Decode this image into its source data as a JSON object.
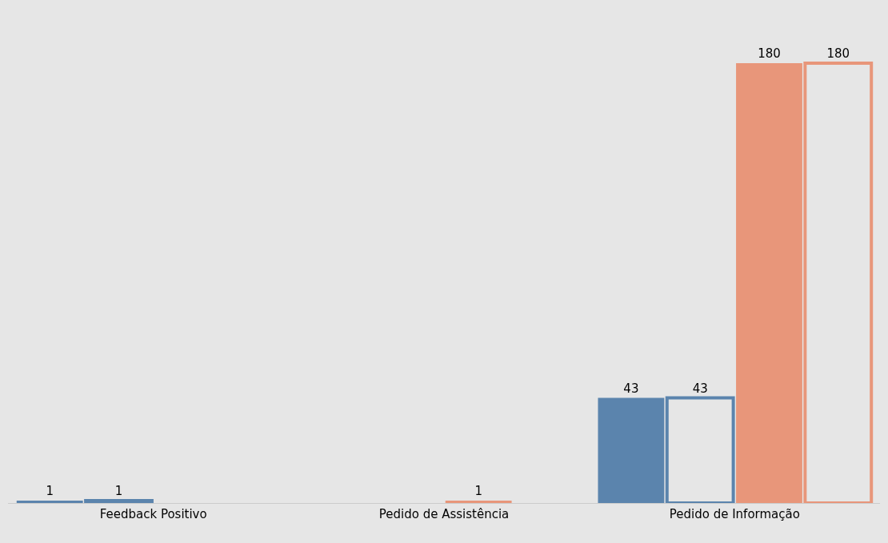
{
  "chart_data": {
    "type": "bar",
    "categories": [
      "Feedback Positivo",
      "Pedido de Assistência",
      "Pedido de Informação"
    ],
    "series": [
      {
        "color": "#5b84ad",
        "values": [
          1,
          null,
          43
        ]
      },
      {
        "color": "#5b84ad",
        "values": [
          1,
          null,
          43
        ]
      },
      {
        "color": "#e8967a",
        "values": [
          null,
          1,
          180
        ]
      },
      {
        "color": "#e8967a",
        "values": [
          null,
          null,
          180
        ]
      }
    ],
    "data_labels": true
  }
}
